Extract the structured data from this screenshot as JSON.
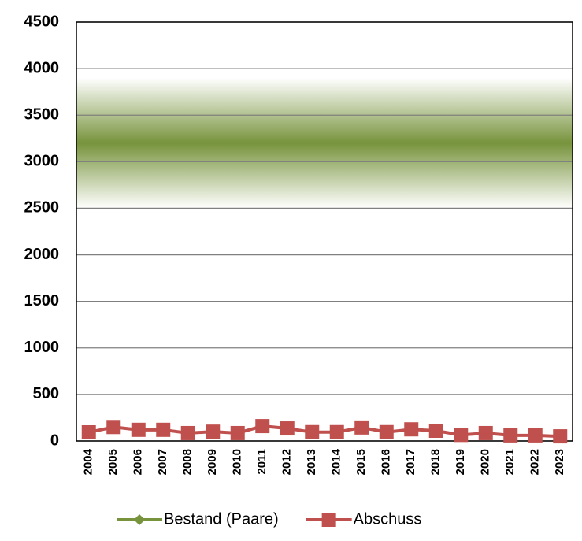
{
  "chart_data": {
    "type": "line",
    "categories": [
      "2004",
      "2005",
      "2006",
      "2007",
      "2008",
      "2009",
      "2010",
      "2011",
      "2012",
      "2013",
      "2014",
      "2015",
      "2016",
      "2017",
      "2018",
      "2019",
      "2020",
      "2021",
      "2022",
      "2023"
    ],
    "series": [
      {
        "name": "Bestand (Paare)",
        "color": "#77933c",
        "band": {
          "low": 2500,
          "center": 3200,
          "high": 3900
        }
      },
      {
        "name": "Abschuss",
        "color": "#c0504d",
        "values": [
          93,
          150,
          120,
          120,
          85,
          100,
          85,
          160,
          135,
          95,
          95,
          145,
          95,
          125,
          110,
          65,
          85,
          60,
          60,
          50
        ]
      }
    ],
    "ylim": [
      0,
      4500
    ],
    "yticks": [
      0,
      500,
      1000,
      1500,
      2000,
      2500,
      3000,
      3500,
      4000,
      4500
    ],
    "grid": true,
    "legend": "bottom"
  }
}
